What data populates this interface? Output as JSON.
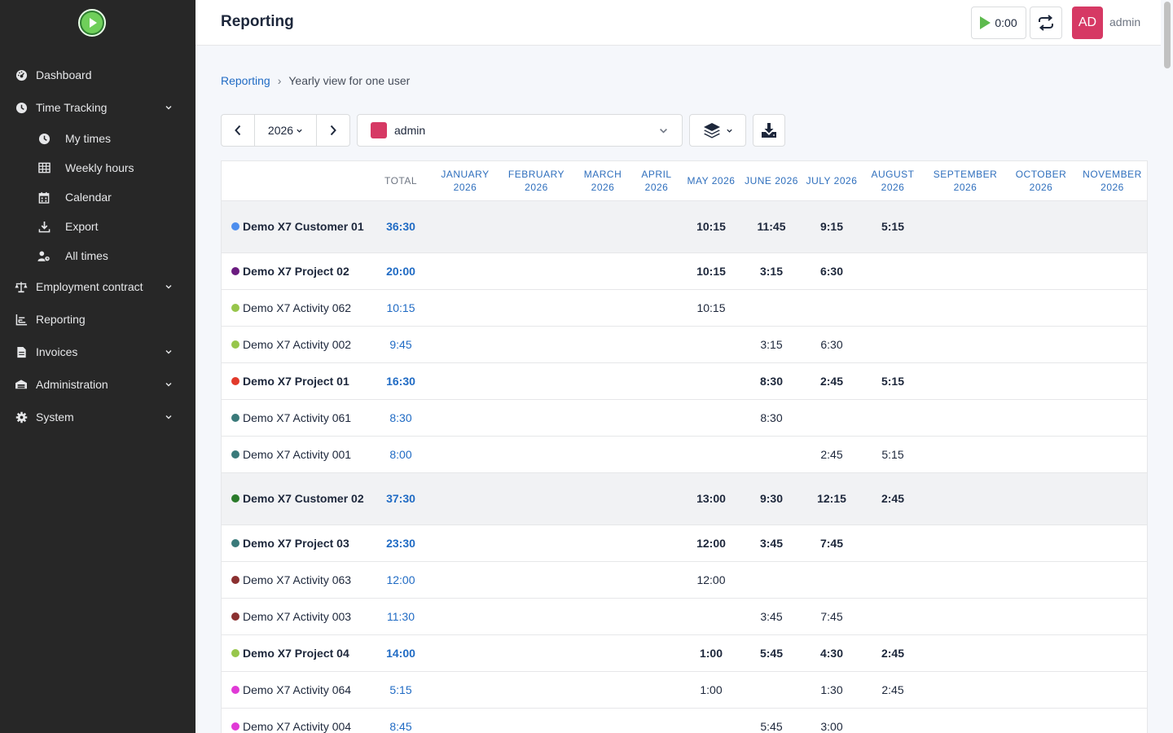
{
  "app": {
    "page_title": "Reporting",
    "timer_value": "0:00",
    "avatar_initials": "AD",
    "user_name": "admin"
  },
  "sidebar": {
    "items": [
      {
        "label": "Dashboard",
        "icon": "dashboard-icon"
      },
      {
        "label": "Time Tracking",
        "icon": "clock-icon",
        "expandable": true,
        "children": [
          {
            "label": "My times",
            "icon": "clock-icon"
          },
          {
            "label": "Weekly hours",
            "icon": "table-icon"
          },
          {
            "label": "Calendar",
            "icon": "calendar-icon"
          },
          {
            "label": "Export",
            "icon": "download-icon"
          },
          {
            "label": "All times",
            "icon": "users-clock-icon"
          }
        ]
      },
      {
        "label": "Employment contract",
        "icon": "scale-icon",
        "expandable": true
      },
      {
        "label": "Reporting",
        "icon": "chart-icon"
      },
      {
        "label": "Invoices",
        "icon": "invoice-icon",
        "expandable": true
      },
      {
        "label": "Administration",
        "icon": "admin-icon",
        "expandable": true
      },
      {
        "label": "System",
        "icon": "gear-icon",
        "expandable": true
      }
    ]
  },
  "breadcrumb": {
    "link": "Reporting",
    "separator": "›",
    "current": "Yearly view for one user"
  },
  "toolbar": {
    "year": "2026",
    "user": "admin",
    "user_color": "#d63964"
  },
  "table": {
    "headers": [
      "TOTAL",
      "JANUARY 2026",
      "FEBRUARY 2026",
      "MARCH 2026",
      "APRIL 2026",
      "MAY 2026",
      "JUNE 2026",
      "JULY 2026",
      "AUGUST 2026",
      "SEPTEMBER 2026",
      "OCTOBER 2026",
      "NOVEMBER 2026"
    ],
    "rows": [
      {
        "type": "customer",
        "name": "Demo X7 Customer 01",
        "color": "#4d8eee",
        "total": "36:30",
        "months": [
          "",
          "",
          "",
          "",
          "10:15",
          "11:45",
          "9:15",
          "5:15",
          "",
          "",
          ""
        ]
      },
      {
        "type": "project",
        "name": "Demo X7 Project 02",
        "color": "#6b1c80",
        "total": "20:00",
        "months": [
          "",
          "",
          "",
          "",
          "10:15",
          "3:15",
          "6:30",
          "",
          "",
          "",
          ""
        ]
      },
      {
        "type": "activity",
        "name": "Demo X7 Activity 062",
        "color": "#97c64b",
        "total": "10:15",
        "months": [
          "",
          "",
          "",
          "",
          "10:15",
          "",
          "",
          "",
          "",
          "",
          ""
        ]
      },
      {
        "type": "activity",
        "name": "Demo X7 Activity 002",
        "color": "#97c64b",
        "total": "9:45",
        "months": [
          "",
          "",
          "",
          "",
          "",
          "3:15",
          "6:30",
          "",
          "",
          "",
          ""
        ]
      },
      {
        "type": "project",
        "name": "Demo X7 Project 01",
        "color": "#e23a2b",
        "total": "16:30",
        "months": [
          "",
          "",
          "",
          "",
          "",
          "8:30",
          "2:45",
          "5:15",
          "",
          "",
          ""
        ]
      },
      {
        "type": "activity",
        "name": "Demo X7 Activity 061",
        "color": "#3a7a7a",
        "total": "8:30",
        "months": [
          "",
          "",
          "",
          "",
          "",
          "8:30",
          "",
          "",
          "",
          "",
          ""
        ]
      },
      {
        "type": "activity",
        "name": "Demo X7 Activity 001",
        "color": "#3a7a7a",
        "total": "8:00",
        "months": [
          "",
          "",
          "",
          "",
          "",
          "",
          "2:45",
          "5:15",
          "",
          "",
          ""
        ]
      },
      {
        "type": "customer",
        "name": "Demo X7 Customer 02",
        "color": "#2a7a2a",
        "total": "37:30",
        "months": [
          "",
          "",
          "",
          "",
          "13:00",
          "9:30",
          "12:15",
          "2:45",
          "",
          "",
          ""
        ]
      },
      {
        "type": "project",
        "name": "Demo X7 Project 03",
        "color": "#3a7a7a",
        "total": "23:30",
        "months": [
          "",
          "",
          "",
          "",
          "12:00",
          "3:45",
          "7:45",
          "",
          "",
          "",
          ""
        ]
      },
      {
        "type": "activity",
        "name": "Demo X7 Activity 063",
        "color": "#8b3030",
        "total": "12:00",
        "months": [
          "",
          "",
          "",
          "",
          "12:00",
          "",
          "",
          "",
          "",
          "",
          ""
        ]
      },
      {
        "type": "activity",
        "name": "Demo X7 Activity 003",
        "color": "#8b3030",
        "total": "11:30",
        "months": [
          "",
          "",
          "",
          "",
          "",
          "3:45",
          "7:45",
          "",
          "",
          "",
          ""
        ]
      },
      {
        "type": "project",
        "name": "Demo X7 Project 04",
        "color": "#97c64b",
        "total": "14:00",
        "months": [
          "",
          "",
          "",
          "",
          "1:00",
          "5:45",
          "4:30",
          "2:45",
          "",
          "",
          ""
        ]
      },
      {
        "type": "activity",
        "name": "Demo X7 Activity 064",
        "color": "#e03ad6",
        "total": "5:15",
        "months": [
          "",
          "",
          "",
          "",
          "1:00",
          "",
          "1:30",
          "2:45",
          "",
          "",
          ""
        ]
      },
      {
        "type": "activity",
        "name": "Demo X7 Activity 004",
        "color": "#e03ad6",
        "total": "8:45",
        "months": [
          "",
          "",
          "",
          "",
          "",
          "5:45",
          "3:00",
          "",
          "",
          "",
          ""
        ]
      }
    ]
  }
}
